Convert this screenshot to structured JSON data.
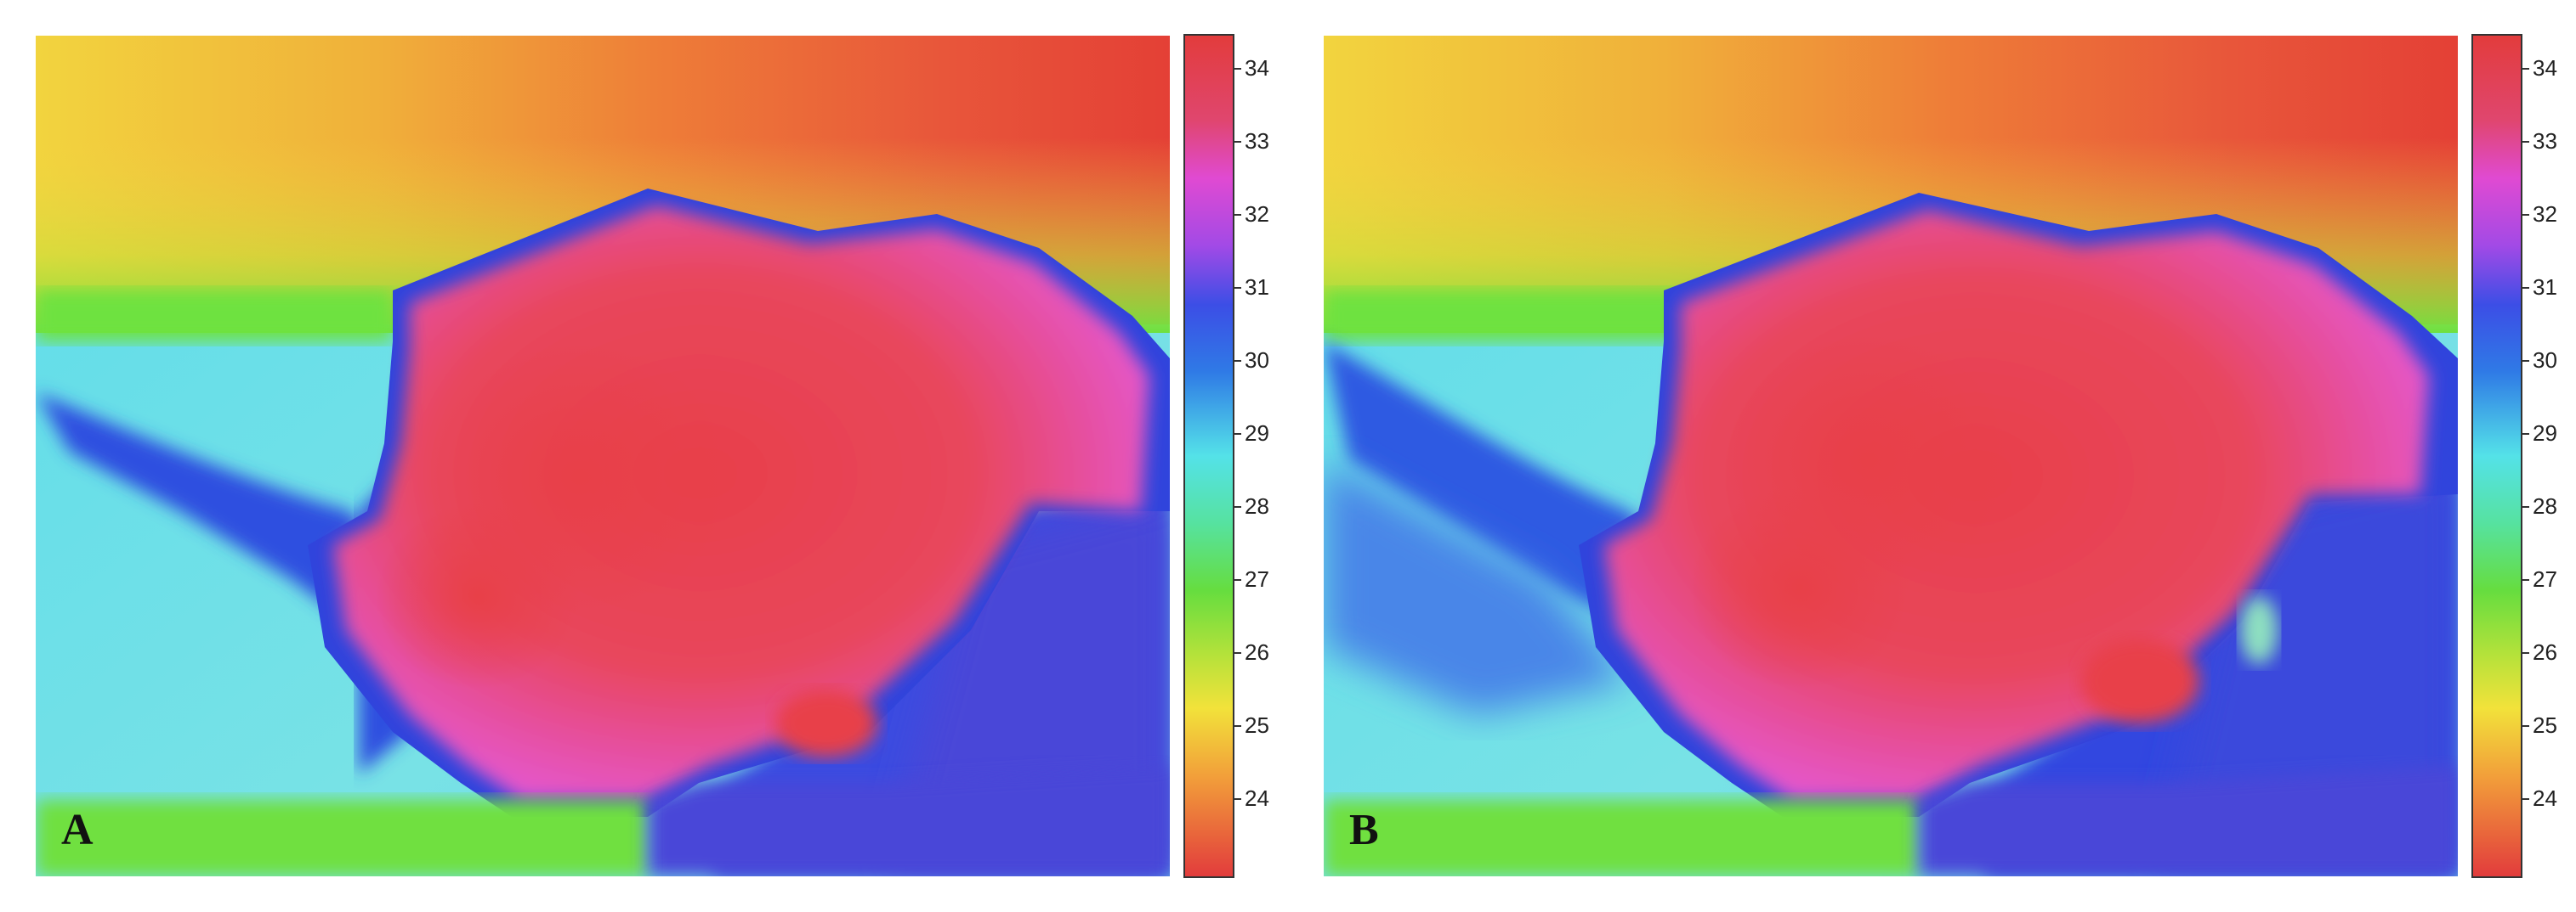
{
  "panels": [
    {
      "label": "A"
    },
    {
      "label": "B"
    }
  ],
  "colorbar": {
    "ticks": [
      "34",
      "33",
      "32",
      "31",
      "30",
      "29",
      "28",
      "27",
      "26",
      "25",
      "24"
    ],
    "colors": {
      "top": "#e43a3a",
      "magenta": "#e040e8",
      "blue": "#2d55e6",
      "cyan": "#55e4e6",
      "green": "#68e040",
      "yellow": "#f2e23a",
      "bottom": "#e43a3a"
    }
  },
  "image_colors": {
    "body": "#e8404c",
    "body_pink": "#e84fa8",
    "outline": "#2e44dc",
    "background_left": "#5fd6ea",
    "background_blue": "#3a5ee0",
    "top_yellow": "#f4cc3c",
    "top_orange": "#ee7a36",
    "top_red": "#e44238",
    "ground_green": "#70e040"
  }
}
